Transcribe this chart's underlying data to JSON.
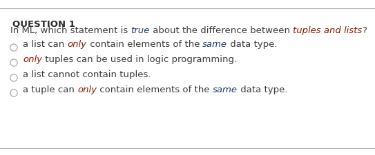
{
  "title": "QUESTION 1",
  "bg_color": "#ffffff",
  "title_color": "#2c2c2c",
  "top_line_color": "#b0b0b0",
  "bottom_line_color": "#b0b0b0",
  "circle_color": "#a0a0a0",
  "question_line": {
    "parts": [
      {
        "text": "In ML, which statement is ",
        "color": "#3a3a3a",
        "italic": false
      },
      {
        "text": "true",
        "color": "#1a3a6b",
        "italic": true
      },
      {
        "text": " about the difference between ",
        "color": "#3a3a3a",
        "italic": false
      },
      {
        "text": "tuples and lists",
        "color": "#8b1a00",
        "italic": true
      },
      {
        "text": "?",
        "color": "#3a3a3a",
        "italic": false
      }
    ]
  },
  "options": [
    [
      {
        "text": "a list can ",
        "color": "#3a3a3a",
        "italic": false
      },
      {
        "text": "only",
        "color": "#8b1a00",
        "italic": true
      },
      {
        "text": " contain elements of the ",
        "color": "#3a3a3a",
        "italic": false
      },
      {
        "text": "same",
        "color": "#1a3a6b",
        "italic": true
      },
      {
        "text": " data type.",
        "color": "#3a3a3a",
        "italic": false
      }
    ],
    [
      {
        "text": "only",
        "color": "#8b1a00",
        "italic": true
      },
      {
        "text": " tuples can be used in logic programming.",
        "color": "#3a3a3a",
        "italic": false
      }
    ],
    [
      {
        "text": "a list cannot contain tuples.",
        "color": "#3a3a3a",
        "italic": false
      }
    ],
    [
      {
        "text": "a tuple can ",
        "color": "#3a3a3a",
        "italic": false
      },
      {
        "text": "only",
        "color": "#8b1a00",
        "italic": true
      },
      {
        "text": " contain elements of the ",
        "color": "#3a3a3a",
        "italic": false
      },
      {
        "text": "same",
        "color": "#1a3a6b",
        "italic": true
      },
      {
        "text": " data type.",
        "color": "#3a3a3a",
        "italic": false
      }
    ]
  ],
  "fontsize": 9.5,
  "title_fontsize": 9.5,
  "option_fontsize": 9.5
}
